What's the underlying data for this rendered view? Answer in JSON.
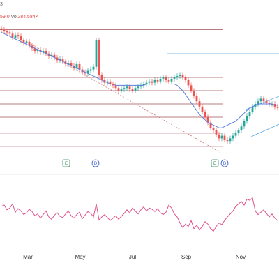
{
  "header": {
    "top_fragment": "3",
    "ohlc_fragment": "59.0",
    "vol_label": "Vol",
    "vol_value": "284.584K"
  },
  "colors": {
    "up": "#26a69a",
    "down": "#ef5350",
    "ma": "#5b7fdb",
    "level": "#a0505a",
    "channel": "#5aa9e6",
    "trend": "#c87a7a",
    "oscillator": "#e0518c",
    "band": "#e05050"
  },
  "markers": [
    {
      "label": "E",
      "type": "earnings"
    },
    {
      "label": "D",
      "type": "dividend"
    },
    {
      "label": "E",
      "type": "earnings"
    },
    {
      "label": "D",
      "type": "dividend"
    }
  ],
  "chart_data": [
    {
      "type": "candlestick",
      "x_axis_ticks": [
        "Mar",
        "May",
        "Jul",
        "Sep",
        "Nov"
      ],
      "series": [
        {
          "kind": "close",
          "values": [
            96,
            95,
            94,
            93,
            90,
            92,
            91,
            88,
            86,
            87,
            84,
            82,
            80,
            81,
            79,
            80,
            78,
            76,
            77,
            75,
            73,
            74,
            72,
            70,
            71,
            69,
            67,
            70,
            66,
            64,
            63,
            65,
            66,
            68,
            88,
            62,
            58,
            56,
            57,
            55,
            54,
            52,
            50,
            51,
            52,
            53,
            51,
            50,
            52,
            53,
            54,
            55,
            56,
            57,
            56,
            58,
            57,
            59,
            60,
            58,
            57,
            59,
            60,
            61,
            62,
            60,
            58,
            54,
            50,
            46,
            42,
            38,
            34,
            30,
            26,
            22,
            20,
            17,
            14,
            16,
            13,
            12,
            14,
            16,
            18,
            20,
            23,
            27,
            31,
            34,
            38,
            40,
            42,
            44,
            42,
            41,
            40,
            40,
            38,
            37
          ]
        },
        {
          "kind": "moving-average",
          "values": [
            94,
            93,
            92,
            91,
            90,
            89,
            88,
            87,
            86,
            85,
            84,
            83,
            82,
            81,
            80,
            79,
            78,
            77,
            76,
            75,
            74,
            73,
            72,
            71,
            70,
            69,
            68,
            67,
            66,
            65,
            64,
            63,
            62,
            61,
            60,
            59,
            58,
            57,
            56,
            55,
            55,
            54,
            54,
            54,
            54,
            54,
            54,
            54,
            54,
            54,
            54,
            54,
            55,
            55,
            55,
            55,
            55,
            55,
            55,
            55,
            55,
            55,
            55,
            54,
            52,
            50,
            47,
            44,
            41,
            38,
            35,
            32,
            30,
            28,
            26,
            25,
            24,
            23,
            22,
            22,
            23,
            24,
            25,
            26,
            27,
            29,
            31,
            33,
            35,
            37,
            38,
            39,
            40,
            40,
            40,
            40,
            40,
            40,
            39,
            39
          ]
        }
      ],
      "horizontal_levels": [
        96,
        76,
        60,
        50,
        40,
        30,
        18,
        8
      ]
    },
    {
      "type": "line",
      "name": "oscillator",
      "values": [
        58,
        60,
        52,
        55,
        62,
        48,
        54,
        50,
        44,
        47,
        53,
        49,
        42,
        45,
        38,
        44,
        50,
        40,
        36,
        43,
        47,
        41,
        39,
        45,
        50,
        42,
        38,
        44,
        48,
        37,
        43,
        49,
        46,
        40,
        62,
        35,
        40,
        44,
        39,
        34,
        38,
        42,
        36,
        41,
        46,
        52,
        47,
        55,
        50,
        45,
        52,
        57,
        50,
        55,
        53,
        49,
        54,
        47,
        44,
        48,
        60,
        55,
        45,
        40,
        30,
        22,
        28,
        24,
        34,
        20,
        26,
        18,
        24,
        32,
        28,
        20,
        16,
        24,
        30,
        27,
        34,
        40,
        45,
        50,
        58,
        62,
        66,
        60,
        70,
        68,
        72,
        50,
        44,
        48,
        52,
        46,
        40,
        45,
        38,
        34
      ],
      "levels": [
        70,
        50,
        30
      ],
      "ylim": [
        0,
        100
      ]
    }
  ]
}
